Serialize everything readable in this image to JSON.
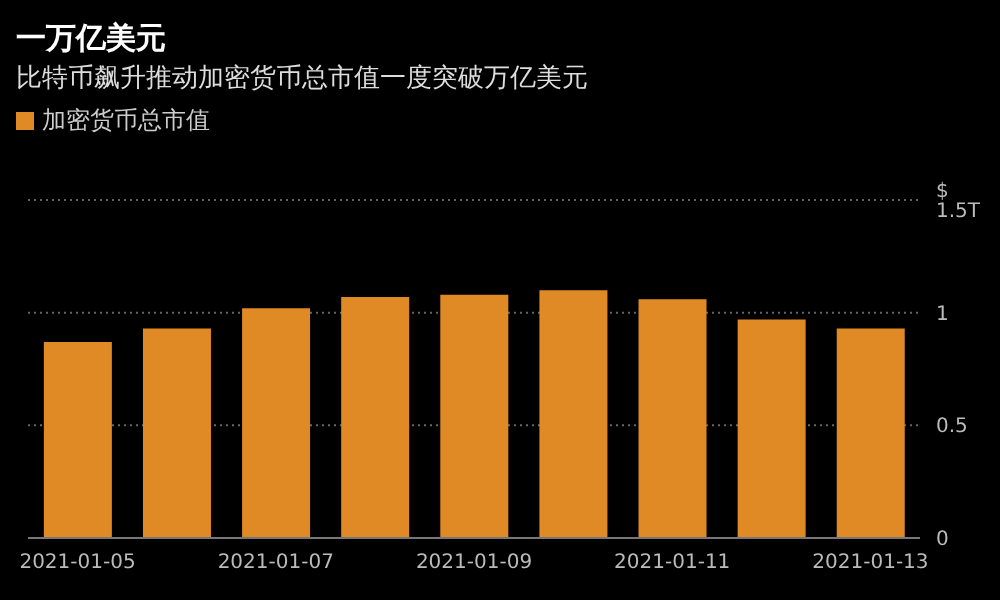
{
  "chart_data": {
    "type": "bar",
    "title": "一万亿美元",
    "subtitle": "比特币飙升推动加密货币总市值一度突破万亿美元",
    "categories": [
      "2021-01-05",
      null,
      "2021-01-07",
      null,
      "2021-01-09",
      null,
      "2021-01-11",
      null,
      "2021-01-13"
    ],
    "series": [
      {
        "name": "加密货币总市值",
        "color": "#e08a25",
        "values": [
          0.87,
          0.93,
          1.02,
          1.07,
          1.08,
          1.1,
          1.06,
          0.97,
          0.93
        ]
      }
    ],
    "ylim": [
      0,
      1.5
    ],
    "yticks": [
      0,
      0.5,
      1,
      {
        "value": 1.5,
        "label": "$ 1.5T"
      }
    ],
    "grid": "y",
    "legend": "top left"
  }
}
